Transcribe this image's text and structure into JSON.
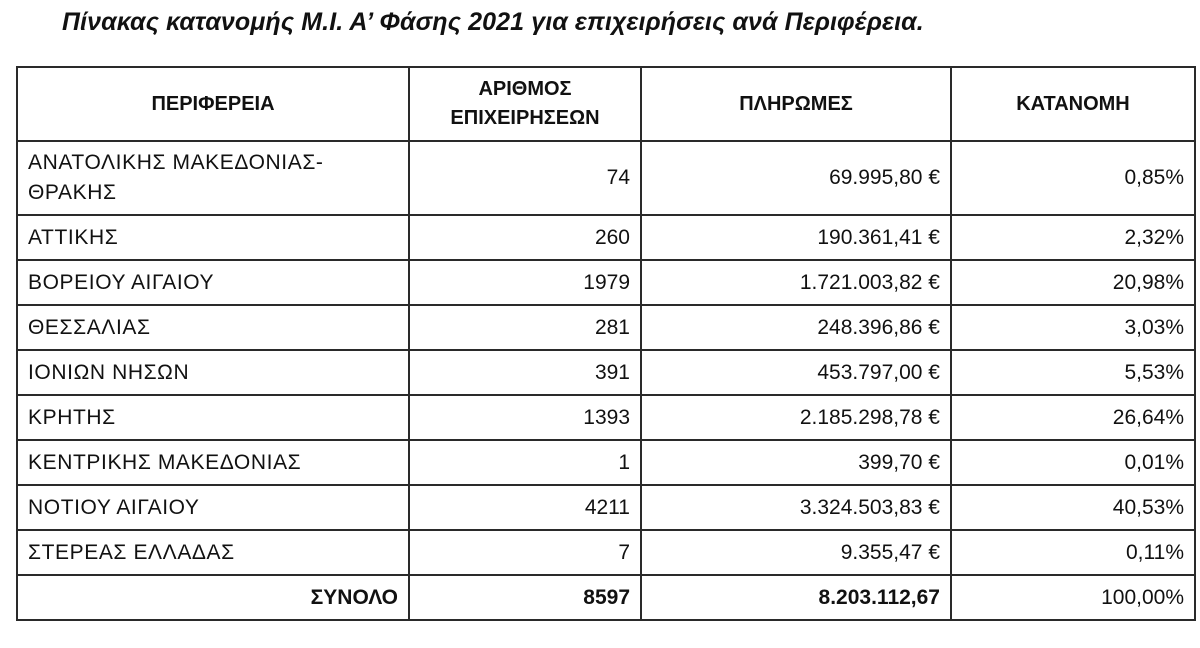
{
  "title": "Πίνακας κατανομής Μ.Ι. Α’ Φάσης 2021 για επιχειρήσεις ανά Περιφέρεια.",
  "table": {
    "headers": {
      "region": "ΠΕΡΙΦΕΡΕΙΑ",
      "count_line1": "ΑΡΙΘΜΟΣ",
      "count_line2": "ΕΠΙΧΕΙΡΗΣΕΩΝ",
      "payments": "ΠΛΗΡΩΜΕΣ",
      "allocation": "ΚΑΤΑΝΟΜΗ"
    },
    "rows": [
      {
        "region_line1": "ΑΝΑΤΟΛΙΚΗΣ ΜΑΚΕΔΟΝΙΑΣ-",
        "region_line2": "ΘΡΑΚΗΣ",
        "count": "74",
        "payments": "69.995,80 €",
        "allocation": "0,85%"
      },
      {
        "region": "ΑΤΤΙΚΗΣ",
        "count": "260",
        "payments": "190.361,41 €",
        "allocation": "2,32%"
      },
      {
        "region": "ΒΟΡΕΙΟΥ ΑΙΓΑΙΟΥ",
        "count": "1979",
        "payments": "1.721.003,82 €",
        "allocation": "20,98%"
      },
      {
        "region": "ΘΕΣΣΑΛΙΑΣ",
        "count": "281",
        "payments": "248.396,86 €",
        "allocation": "3,03%"
      },
      {
        "region": "ΙΟΝΙΩΝ ΝΗΣΩΝ",
        "count": "391",
        "payments": "453.797,00 €",
        "allocation": "5,53%"
      },
      {
        "region": "ΚΡΗΤΗΣ",
        "count": "1393",
        "payments": "2.185.298,78 €",
        "allocation": "26,64%"
      },
      {
        "region": "ΚΕΝΤΡΙΚΗΣ ΜΑΚΕΔΟΝΙΑΣ",
        "count": "1",
        "payments": "399,70 €",
        "allocation": "0,01%"
      },
      {
        "region": "ΝΟΤΙΟΥ ΑΙΓΑΙΟΥ",
        "count": "4211",
        "payments": "3.324.503,83 €",
        "allocation": "40,53%"
      },
      {
        "region": "ΣΤΕΡΕΑΣ ΕΛΛΑΔΑΣ",
        "count": "7",
        "payments": "9.355,47 €",
        "allocation": "0,11%"
      }
    ],
    "total": {
      "label": "ΣΥΝΟΛΟ",
      "count": "8597",
      "payments": "8.203.112,67",
      "allocation": "100,00%"
    }
  }
}
